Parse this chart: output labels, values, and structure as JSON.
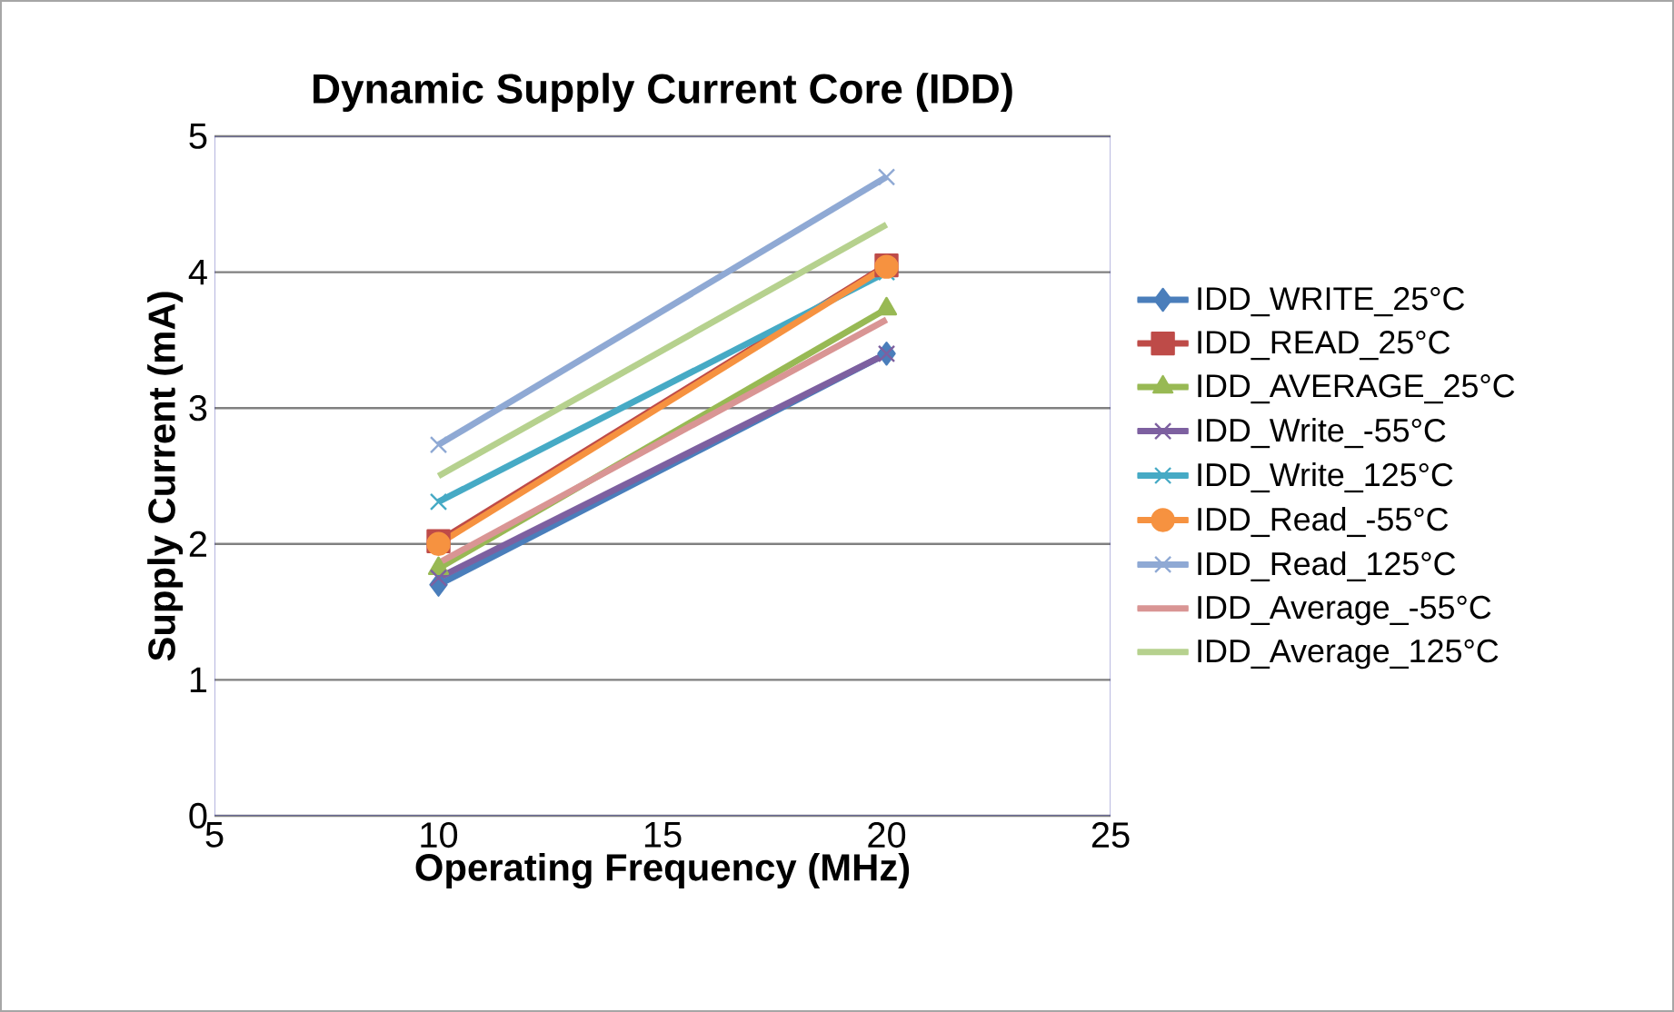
{
  "chart_data": {
    "type": "line",
    "title": "Dynamic Supply Current Core (IDD)",
    "xlabel": "Operating Frequency (MHz)",
    "ylabel": "Supply Current (mA)",
    "x": [
      10,
      20
    ],
    "xlim": [
      5,
      25
    ],
    "xticks": [
      5,
      10,
      15,
      20,
      25
    ],
    "ylim": [
      0,
      5
    ],
    "yticks": [
      0,
      1,
      2,
      3,
      4,
      5
    ],
    "grid": "y",
    "legend": "right",
    "series": [
      {
        "name": "IDD_WRITE_25°C",
        "color": "#4a7ebb",
        "marker": "diamond",
        "values": [
          1.7,
          3.4
        ]
      },
      {
        "name": "IDD_READ_25°C",
        "color": "#be4b48",
        "marker": "square",
        "values": [
          2.02,
          4.05
        ]
      },
      {
        "name": "IDD_AVERAGE_25°C",
        "color": "#98b954",
        "marker": "triangle",
        "values": [
          1.82,
          3.73
        ]
      },
      {
        "name": "IDD_Write_-55°C",
        "color": "#7d60a0",
        "marker": "cross",
        "values": [
          1.75,
          3.4
        ]
      },
      {
        "name": "IDD_Write_125°C",
        "color": "#46aac5",
        "marker": "cross",
        "values": [
          2.31,
          4.0
        ]
      },
      {
        "name": "IDD_Read_-55°C",
        "color": "#f69240",
        "marker": "circle",
        "values": [
          2.0,
          4.04
        ]
      },
      {
        "name": "IDD_Read_125°C",
        "color": "#8fa9d4",
        "marker": "cross",
        "values": [
          2.73,
          4.7
        ]
      },
      {
        "name": "IDD_Average_-55°C",
        "color": "#d99594",
        "marker": "none",
        "values": [
          1.86,
          3.65
        ]
      },
      {
        "name": "IDD_Average_125°C",
        "color": "#b6d18e",
        "marker": "none",
        "values": [
          2.5,
          4.35
        ]
      }
    ]
  }
}
